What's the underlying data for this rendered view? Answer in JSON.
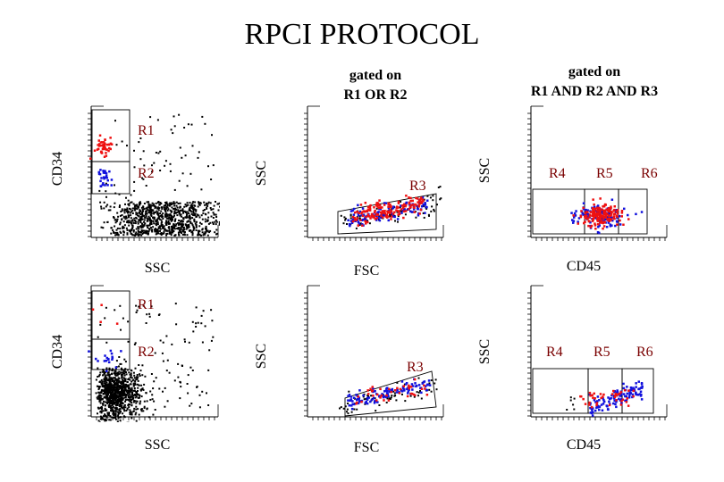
{
  "title": "RPCI PROTOCOL",
  "gate_notes": {
    "middle": {
      "line1": "gated on",
      "line2": "R1 OR R2"
    },
    "right": {
      "line1": "gated on",
      "line2": "R1 AND R2 AND R3"
    }
  },
  "axes": {
    "cd34": "CD34",
    "ssc": "SSC",
    "fsc": "FSC",
    "cd45": "CD45"
  },
  "regions": {
    "r1": "R1",
    "r2": "R2",
    "r3": "R3",
    "r4": "R4",
    "r5": "R5",
    "r6": "R6"
  },
  "colors": {
    "red": "#ee1111",
    "blue": "#1111dd",
    "black": "#000000",
    "region_label": "#7a0000"
  },
  "chart_data": [
    {
      "panel": "top-left",
      "type": "scatter",
      "x_label": "SSC",
      "y_label": "CD34",
      "gates": [
        "R1",
        "R2"
      ]
    },
    {
      "panel": "top-middle",
      "type": "scatter",
      "x_label": "FSC",
      "y_label": "SSC",
      "gates": [
        "R3"
      ],
      "gating": "R1 OR R2"
    },
    {
      "panel": "top-right",
      "type": "scatter",
      "x_label": "CD45",
      "y_label": "SSC",
      "gates": [
        "R4",
        "R5",
        "R6"
      ],
      "gating": "R1 AND R2 AND R3"
    },
    {
      "panel": "bottom-left",
      "type": "scatter",
      "x_label": "SSC",
      "y_label": "CD34",
      "gates": [
        "R1",
        "R2"
      ]
    },
    {
      "panel": "bottom-middle",
      "type": "scatter",
      "x_label": "FSC",
      "y_label": "SSC",
      "gates": [
        "R3"
      ]
    },
    {
      "panel": "bottom-right",
      "type": "scatter",
      "x_label": "CD45",
      "y_label": "SSC",
      "gates": [
        "R4",
        "R5",
        "R6"
      ]
    }
  ]
}
